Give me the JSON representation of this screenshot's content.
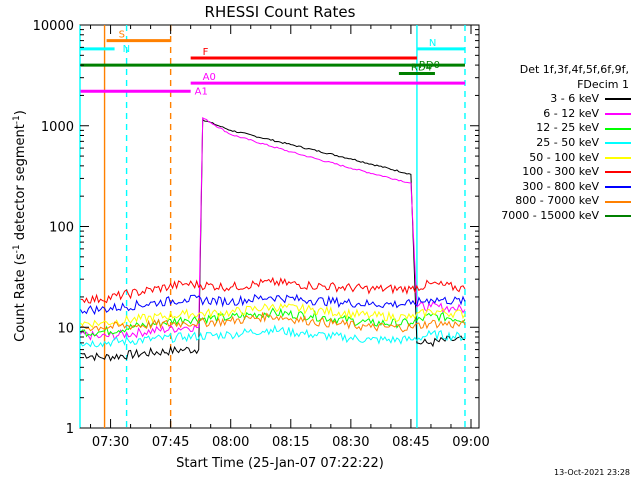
{
  "chart_data": {
    "type": "line",
    "title": "RHESSI Count Rates",
    "xlabel": "Start Time (25-Jan-07 07:22:22)",
    "ylabel": "Count Rate (s",
    "ylabel_sup": "-1",
    "ylabel_tail": " detector segment",
    "ylabel_sup2": "-1",
    "ylabel_close": ")",
    "y_scale": "log",
    "ylim": [
      1,
      10000
    ],
    "xlim": [
      "07:22:22",
      "09:02:00"
    ],
    "x_ticks": [
      "07:30",
      "07:45",
      "08:00",
      "08:15",
      "08:30",
      "08:45",
      "09:00"
    ],
    "y_ticks": [
      "1",
      "10",
      "100",
      "1000",
      "10000"
    ],
    "grid": false,
    "legend_position": "right",
    "legend_header": [
      "Det 1f,3f,4f,5f,6f,9f,",
      "FDecim 1"
    ],
    "series": [
      {
        "name": "3 - 6 keV",
        "color": "#000000",
        "x": [
          "07:22:30",
          "07:27:30",
          "07:48:30",
          "07:52:00",
          "07:53:00",
          "08:00:00",
          "08:15:00",
          "08:30:00",
          "08:45:00",
          "08:46:30",
          "08:50:00",
          "08:55:00",
          "08:58:30"
        ],
        "values": [
          5.5,
          5.0,
          6.0,
          6.0,
          1150,
          900,
          650,
          470,
          330,
          7.0,
          7.0,
          7.5,
          7.5
        ]
      },
      {
        "name": "6 - 12 keV",
        "color": "#ff00ff",
        "x": [
          "07:22:30",
          "07:27:30",
          "07:48:30",
          "07:52:00",
          "07:53:00",
          "08:00:00",
          "08:15:00",
          "08:30:00",
          "08:45:00",
          "08:46:30",
          "08:50:00",
          "08:55:00",
          "08:58:30"
        ],
        "values": [
          8.5,
          8.0,
          10.0,
          10.0,
          1200,
          820,
          550,
          380,
          270,
          16.0,
          16.0,
          15.5,
          15.0
        ]
      },
      {
        "name": "12 - 25 keV",
        "color": "#00ff00",
        "x": [
          "07:22:30",
          "07:27:30",
          "07:48:30",
          "08:00:00",
          "08:10:00",
          "08:20:00",
          "08:35:00",
          "08:45:00",
          "08:50:00",
          "08:58:30"
        ],
        "values": [
          9.0,
          9.0,
          12.0,
          12.5,
          14.0,
          13.0,
          11.0,
          11.0,
          13.0,
          12.0
        ]
      },
      {
        "name": "25 - 50 keV",
        "color": "#00ffff",
        "x": [
          "07:22:30",
          "07:27:30",
          "07:48:30",
          "08:00:00",
          "08:10:00",
          "08:20:00",
          "08:35:00",
          "08:45:00",
          "08:50:00",
          "08:58:30"
        ],
        "values": [
          7.0,
          7.0,
          8.0,
          8.5,
          9.5,
          8.5,
          7.5,
          7.5,
          8.5,
          8.0
        ]
      },
      {
        "name": "50 - 100 keV",
        "color": "#ffff00",
        "x": [
          "07:22:30",
          "07:27:30",
          "07:48:30",
          "08:00:00",
          "08:10:00",
          "08:20:00",
          "08:35:00",
          "08:45:00",
          "08:50:00",
          "08:58:30"
        ],
        "values": [
          11.0,
          11.0,
          13.5,
          14.0,
          16.0,
          15.0,
          13.0,
          12.5,
          14.5,
          13.5
        ]
      },
      {
        "name": "100 - 300 keV",
        "color": "#ff0000",
        "x": [
          "07:22:30",
          "07:27:30",
          "07:48:30",
          "08:00:00",
          "08:10:00",
          "08:20:00",
          "08:35:00",
          "08:45:00",
          "08:50:00",
          "08:58:30"
        ],
        "values": [
          19.0,
          19.0,
          27.0,
          25.0,
          28.0,
          26.0,
          24.0,
          24.0,
          27.0,
          24.0
        ]
      },
      {
        "name": "300 - 800 keV",
        "color": "#0000ff",
        "x": [
          "07:22:30",
          "07:27:30",
          "07:48:30",
          "08:00:00",
          "08:10:00",
          "08:20:00",
          "08:35:00",
          "08:45:00",
          "08:50:00",
          "08:58:30"
        ],
        "values": [
          15.0,
          15.0,
          19.0,
          18.0,
          20.0,
          18.5,
          17.0,
          17.0,
          19.0,
          18.0
        ]
      },
      {
        "name": "800 - 7000 keV",
        "color": "#ff8000",
        "x": [
          "07:22:30",
          "07:27:30",
          "07:48:30",
          "08:00:00",
          "08:10:00",
          "08:20:00",
          "08:35:00",
          "08:45:00",
          "08:50:00",
          "08:58:30"
        ],
        "values": [
          10.0,
          10.0,
          11.0,
          11.5,
          13.0,
          11.5,
          10.0,
          10.0,
          11.0,
          10.5
        ]
      },
      {
        "name": "7000 - 15000 keV",
        "color": "#008000",
        "x": [],
        "values": []
      }
    ],
    "flags": [
      {
        "label": "S",
        "color": "#ff8000",
        "start": "07:29:00",
        "end": "07:45:00",
        "level": 7000
      },
      {
        "label": "N",
        "color": "#00ffff",
        "start": "07:22:30",
        "end": "07:31:00",
        "level": 5800,
        "label_at": "07:33:00"
      },
      {
        "label": "N",
        "color": "#00ffff",
        "start": "08:46:30",
        "end": "08:58:30",
        "level": 5800
      },
      {
        "label": "F",
        "color": "#ff0000",
        "start": "07:50:00",
        "end": "08:46:30",
        "level": 4700
      },
      {
        "label": "RD0",
        "color": "#008000",
        "start": "07:22:30",
        "end": "08:58:30",
        "level": 4000,
        "label_at": "08:47:00"
      },
      {
        "label": "RD4",
        "color": "#008000",
        "start": "08:42:00",
        "end": "08:51:00",
        "level": 3300
      },
      {
        "label": "A0",
        "color": "#ff00ff",
        "start": "07:50:00",
        "end": "08:58:30",
        "level": 2650
      },
      {
        "label": "A1",
        "color": "#ff00ff",
        "start": "07:22:30",
        "end": "07:50:00",
        "level": 2200,
        "label_at": "07:51:00"
      }
    ],
    "vertical_lines": [
      {
        "time": "07:22:22",
        "color": "#00ffff",
        "style": "solid"
      },
      {
        "time": "07:28:30",
        "color": "#ff8000",
        "style": "solid"
      },
      {
        "time": "07:34:00",
        "color": "#00ffff",
        "style": "dashed"
      },
      {
        "time": "07:45:00",
        "color": "#ff8000",
        "style": "dashed"
      },
      {
        "time": "08:46:30",
        "color": "#00ffff",
        "style": "solid"
      },
      {
        "time": "08:58:30",
        "color": "#00ffff",
        "style": "dashed"
      }
    ]
  },
  "footer": {
    "timestamp": "13-Oct-2021 23:28"
  }
}
